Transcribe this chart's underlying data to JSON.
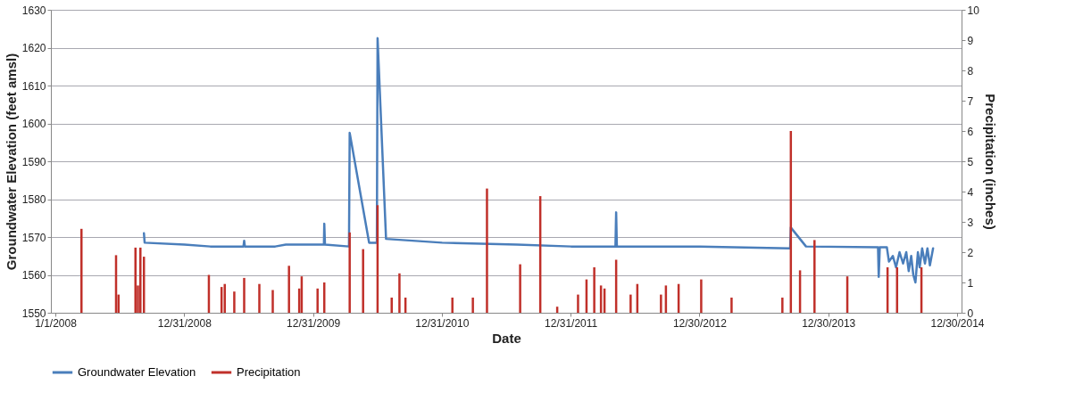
{
  "chart_data": {
    "type": "line",
    "xlabel": "Date",
    "ylabel": "Groundwater Elevation (feet amsl)",
    "y2label": "Precipitation (inches)",
    "xlim": [
      "2008-01-01",
      "2014-12-30"
    ],
    "xticks": [
      {
        "value": "2008-01-01",
        "label": "1/1/2008"
      },
      {
        "value": "2008-12-31",
        "label": "12/31/2008"
      },
      {
        "value": "2009-12-31",
        "label": "12/31/2009"
      },
      {
        "value": "2010-12-31",
        "label": "12/31/2010"
      },
      {
        "value": "2011-12-31",
        "label": "12/31/2011"
      },
      {
        "value": "2012-12-30",
        "label": "12/30/2012"
      },
      {
        "value": "2013-12-30",
        "label": "12/30/2013"
      },
      {
        "value": "2014-12-30",
        "label": "12/30/2014"
      }
    ],
    "ylim": [
      1550,
      1630
    ],
    "yticks": [
      1550,
      1560,
      1570,
      1580,
      1590,
      1600,
      1610,
      1620,
      1630
    ],
    "y2lim": [
      0,
      10
    ],
    "y2ticks": [
      0,
      1,
      2,
      3,
      4,
      5,
      6,
      7,
      8,
      9,
      10
    ],
    "grid": "y",
    "legend": "bottom",
    "series": [
      {
        "name": "Groundwater Elevation",
        "color": "#4a7ebb",
        "axis": "y",
        "x": [
          "2008-09-08",
          "2008-09-10",
          "2009-01-01",
          "2009-03-15",
          "2009-06-17",
          "2009-06-19",
          "2009-06-21",
          "2009-09-15",
          "2009-10-15",
          "2010-01-31",
          "2010-02-01",
          "2010-02-03",
          "2010-04-12",
          "2010-04-14",
          "2010-06-08",
          "2010-06-30",
          "2010-07-02",
          "2010-07-26",
          "2011-01-01",
          "2011-08-01",
          "2012-01-01",
          "2012-05-06",
          "2012-05-08",
          "2012-05-10",
          "2013-01-01",
          "2013-09-13",
          "2013-09-15",
          "2013-10-28",
          "2014-05-20",
          "2014-05-22",
          "2014-05-25",
          "2014-06-14",
          "2014-06-20",
          "2014-07-01",
          "2014-07-10",
          "2014-07-20",
          "2014-07-30",
          "2014-08-08",
          "2014-08-15",
          "2014-08-22",
          "2014-08-28",
          "2014-09-03",
          "2014-09-10",
          "2014-09-15",
          "2014-09-22",
          "2014-09-30",
          "2014-10-07",
          "2014-10-14",
          "2014-10-23"
        ],
        "values": [
          1571,
          1568.5,
          1568,
          1567.5,
          1567.5,
          1569,
          1567.5,
          1567.5,
          1568,
          1568,
          1573.5,
          1568,
          1567.5,
          1597.5,
          1568.5,
          1568.5,
          1622.5,
          1569.5,
          1568.5,
          1568,
          1567.5,
          1567.5,
          1576.5,
          1567.5,
          1567.5,
          1567,
          1572.5,
          1567.5,
          1567.3,
          1559.5,
          1567.3,
          1567.3,
          1563.5,
          1565,
          1562,
          1566,
          1563,
          1566,
          1561,
          1565,
          1560,
          1558,
          1566,
          1562,
          1567,
          1563,
          1567,
          1562.5,
          1567
        ]
      },
      {
        "name": "Precipitation",
        "color": "#c0302a",
        "type": "bar",
        "axis": "y2",
        "x": [
          "2008-03-15",
          "2008-06-21",
          "2008-06-28",
          "2008-08-15",
          "2008-08-22",
          "2008-08-29",
          "2008-09-08",
          "2009-03-11",
          "2009-04-16",
          "2009-04-25",
          "2009-05-22",
          "2009-06-19",
          "2009-08-01",
          "2009-09-08",
          "2009-10-24",
          "2009-11-22",
          "2009-11-29",
          "2010-01-13",
          "2010-02-01",
          "2010-04-14",
          "2010-05-22",
          "2010-07-02",
          "2010-08-11",
          "2010-09-02",
          "2010-09-19",
          "2011-01-30",
          "2011-03-29",
          "2011-05-08",
          "2011-08-10",
          "2011-10-06",
          "2011-11-23",
          "2012-01-21",
          "2012-02-14",
          "2012-03-07",
          "2012-03-26",
          "2012-04-05",
          "2012-05-08",
          "2012-06-18",
          "2012-07-07",
          "2012-09-12",
          "2012-09-26",
          "2012-11-01",
          "2013-01-04",
          "2013-03-31",
          "2013-08-22",
          "2013-09-15",
          "2013-10-11",
          "2013-11-21",
          "2014-02-22",
          "2014-06-16",
          "2014-07-13",
          "2014-09-20"
        ],
        "values": [
          2.77,
          1.9,
          0.6,
          2.15,
          0.9,
          2.15,
          1.85,
          1.25,
          0.85,
          0.95,
          0.7,
          1.15,
          0.95,
          0.75,
          1.55,
          0.8,
          1.2,
          0.8,
          1.0,
          2.65,
          2.1,
          3.55,
          0.5,
          1.3,
          0.5,
          0.5,
          0.5,
          4.1,
          1.6,
          3.85,
          0.2,
          0.6,
          1.1,
          1.5,
          0.9,
          0.8,
          1.75,
          0.6,
          0.95,
          0.6,
          0.9,
          0.95,
          1.1,
          0.5,
          0.5,
          6.0,
          1.4,
          2.4,
          1.2,
          1.5,
          1.5,
          1.5
        ]
      }
    ]
  }
}
